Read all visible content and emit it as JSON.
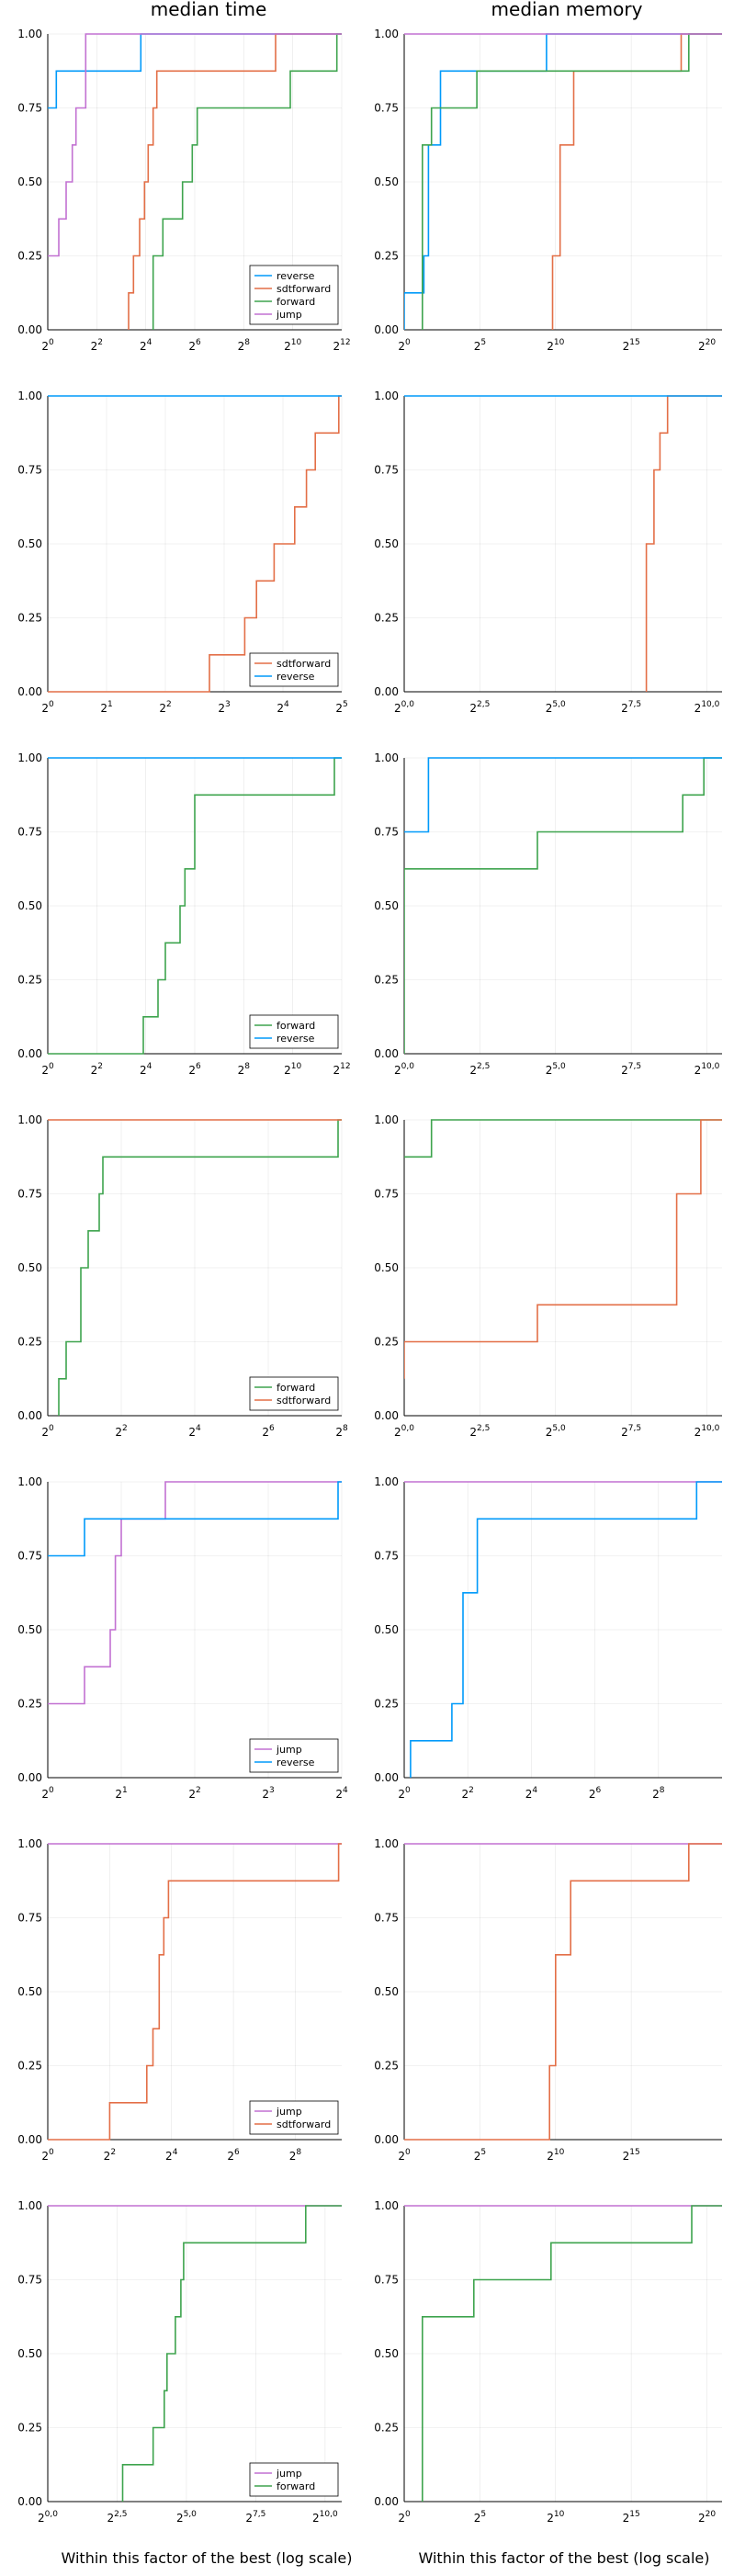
{
  "column_titles": [
    "median time",
    "median memory"
  ],
  "xlabel": "Within this factor of the best (log scale)",
  "colors": {
    "reverse": "#009AFA",
    "sdtforward": "#E36F47",
    "forward": "#3EA44E",
    "jump": "#C271D2"
  },
  "yticks": [
    "0.00",
    "0.25",
    "0.50",
    "0.75",
    "1.00"
  ],
  "chart_data": [
    {
      "type": "line",
      "step": true,
      "panel": "median time",
      "row": 1,
      "x_scale": "log2",
      "xlim": [
        0,
        12
      ],
      "ylim": [
        0,
        1
      ],
      "grid": true,
      "legend": "bottom-right",
      "xticks": [
        "0",
        "2",
        "4",
        "6",
        "8",
        "10",
        "12"
      ],
      "series": [
        {
          "name": "reverse",
          "color_key": "reverse",
          "x": [
            0,
            0.35,
            0.35,
            3.8,
            3.8,
            12.5
          ],
          "y": [
            0.75,
            0.75,
            0.875,
            0.875,
            1,
            1
          ]
        },
        {
          "name": "sdtforward",
          "color_key": "sdtforward",
          "x": [
            3.3,
            3.3,
            3.5,
            3.5,
            3.75,
            3.75,
            3.95,
            3.95,
            4.1,
            4.1,
            4.3,
            4.3,
            4.45,
            4.45,
            9.3,
            9.3,
            12.5
          ],
          "y": [
            0,
            0.125,
            0.125,
            0.25,
            0.25,
            0.375,
            0.375,
            0.5,
            0.5,
            0.625,
            0.625,
            0.75,
            0.75,
            0.875,
            0.875,
            1,
            1
          ]
        },
        {
          "name": "forward",
          "color_key": "forward",
          "x": [
            4.3,
            4.3,
            4.7,
            4.7,
            5.5,
            5.5,
            5.9,
            5.9,
            6.1,
            6.1,
            9.9,
            9.9,
            11.8,
            11.8,
            12.5
          ],
          "y": [
            0,
            0.25,
            0.25,
            0.375,
            0.375,
            0.5,
            0.5,
            0.625,
            0.625,
            0.75,
            0.75,
            0.875,
            0.875,
            1,
            1
          ]
        },
        {
          "name": "jump",
          "color_key": "jump",
          "x": [
            0,
            0.45,
            0.45,
            0.75,
            0.75,
            1.0,
            1.0,
            1.15,
            1.15,
            1.55,
            1.55,
            12.5
          ],
          "y": [
            0.25,
            0.25,
            0.375,
            0.375,
            0.5,
            0.5,
            0.625,
            0.625,
            0.75,
            0.75,
            1,
            1
          ]
        }
      ]
    },
    {
      "type": "line",
      "step": true,
      "panel": "median memory",
      "row": 1,
      "x_scale": "log2",
      "xlim": [
        0,
        21
      ],
      "ylim": [
        0,
        1
      ],
      "grid": true,
      "xticks": [
        "0",
        "5",
        "10",
        "15",
        "20"
      ],
      "series": [
        {
          "name": "reverse",
          "color_key": "reverse",
          "x": [
            0,
            0,
            1.3,
            1.3,
            1.6,
            1.6,
            2.4,
            2.4,
            9.4,
            9.4,
            21.5
          ],
          "y": [
            0,
            0.125,
            0.125,
            0.25,
            0.25,
            0.625,
            0.625,
            0.875,
            0.875,
            1,
            1
          ]
        },
        {
          "name": "sdtforward",
          "color_key": "sdtforward",
          "x": [
            9.8,
            9.8,
            10.3,
            10.3,
            11.2,
            11.2,
            18.3,
            18.3,
            21.5
          ],
          "y": [
            0,
            0.25,
            0.25,
            0.625,
            0.625,
            0.875,
            0.875,
            1,
            1
          ]
        },
        {
          "name": "forward",
          "color_key": "forward",
          "x": [
            1.2,
            1.2,
            1.8,
            1.8,
            4.8,
            4.8,
            9.7,
            9.7,
            18.8,
            18.8,
            21.5
          ],
          "y": [
            0,
            0.625,
            0.625,
            0.75,
            0.75,
            0.875,
            0.875,
            0.875,
            0.875,
            1,
            1
          ]
        },
        {
          "name": "jump",
          "color_key": "jump",
          "x": [
            0,
            21.5
          ],
          "y": [
            1,
            1
          ]
        }
      ]
    },
    {
      "type": "line",
      "step": true,
      "panel": "median time",
      "row": 2,
      "x_scale": "log2",
      "xlim": [
        0,
        5
      ],
      "ylim": [
        0,
        1
      ],
      "grid": true,
      "legend": "bottom-right",
      "xticks": [
        "0",
        "1",
        "2",
        "3",
        "4",
        "5"
      ],
      "series": [
        {
          "name": "sdtforward",
          "color_key": "sdtforward",
          "x": [
            0,
            2.75,
            2.75,
            3.35,
            3.35,
            3.55,
            3.55,
            3.85,
            3.85,
            4.2,
            4.2,
            4.4,
            4.4,
            4.55,
            4.55,
            4.95,
            4.95,
            5.2
          ],
          "y": [
            0,
            0,
            0.125,
            0.125,
            0.25,
            0.25,
            0.375,
            0.375,
            0.5,
            0.5,
            0.625,
            0.625,
            0.75,
            0.75,
            0.875,
            0.875,
            1,
            1
          ]
        },
        {
          "name": "reverse",
          "color_key": "reverse",
          "x": [
            0,
            5.2
          ],
          "y": [
            1,
            1
          ]
        }
      ]
    },
    {
      "type": "line",
      "step": true,
      "panel": "median memory",
      "row": 2,
      "x_scale": "log2",
      "xlim": [
        0,
        10.5
      ],
      "ylim": [
        0,
        1
      ],
      "grid": true,
      "xticks": [
        "0,0",
        "2,5",
        "5,0",
        "7,5",
        "10,0"
      ],
      "series": [
        {
          "name": "sdtforward",
          "color_key": "sdtforward",
          "x": [
            8.0,
            8.0,
            8.25,
            8.25,
            8.45,
            8.45,
            8.7,
            8.7,
            8.95,
            8.95,
            10.9
          ],
          "y": [
            0,
            0.5,
            0.5,
            0.75,
            0.75,
            0.875,
            0.875,
            1,
            1,
            1,
            1
          ]
        },
        {
          "name": "reverse",
          "color_key": "reverse",
          "x": [
            0,
            10.9
          ],
          "y": [
            1,
            1
          ]
        }
      ]
    },
    {
      "type": "line",
      "step": true,
      "panel": "median time",
      "row": 3,
      "x_scale": "log2",
      "xlim": [
        0,
        12
      ],
      "ylim": [
        0,
        1
      ],
      "grid": true,
      "legend": "bottom-right",
      "xticks": [
        "0",
        "2",
        "4",
        "6",
        "8",
        "10",
        "12"
      ],
      "series": [
        {
          "name": "forward",
          "color_key": "forward",
          "x": [
            0,
            3.9,
            3.9,
            4.5,
            4.5,
            4.8,
            4.8,
            5.4,
            5.4,
            5.6,
            5.6,
            6.0,
            6.0,
            11.7,
            11.7,
            12.5
          ],
          "y": [
            0,
            0,
            0.125,
            0.125,
            0.25,
            0.25,
            0.375,
            0.375,
            0.5,
            0.5,
            0.625,
            0.625,
            0.875,
            0.875,
            1,
            1
          ]
        },
        {
          "name": "reverse",
          "color_key": "reverse",
          "x": [
            0,
            12.5
          ],
          "y": [
            1,
            1
          ]
        }
      ]
    },
    {
      "type": "line",
      "step": true,
      "panel": "median memory",
      "row": 3,
      "x_scale": "log2",
      "xlim": [
        0,
        10.5
      ],
      "ylim": [
        0,
        1
      ],
      "grid": true,
      "xticks": [
        "0,0",
        "2,5",
        "5,0",
        "7,5",
        "10,0"
      ],
      "series": [
        {
          "name": "forward",
          "color_key": "forward",
          "x": [
            0,
            0,
            4.4,
            4.4,
            9.2,
            9.2,
            9.9,
            9.9,
            10.9
          ],
          "y": [
            0,
            0.625,
            0.625,
            0.75,
            0.75,
            0.875,
            0.875,
            1,
            1
          ]
        },
        {
          "name": "reverse",
          "color_key": "reverse",
          "x": [
            0,
            0.8,
            0.8,
            10.9
          ],
          "y": [
            0.75,
            0.75,
            1,
            1
          ]
        }
      ]
    },
    {
      "type": "line",
      "step": true,
      "panel": "median time",
      "row": 4,
      "x_scale": "log2",
      "xlim": [
        0,
        8
      ],
      "ylim": [
        0,
        1
      ],
      "grid": true,
      "legend": "bottom-right",
      "xticks": [
        "0",
        "2",
        "4",
        "6",
        "8"
      ],
      "series": [
        {
          "name": "forward",
          "color_key": "forward",
          "x": [
            0.3,
            0.3,
            0.5,
            0.5,
            0.9,
            0.9,
            1.1,
            1.1,
            1.4,
            1.4,
            1.5,
            1.5,
            1.65,
            1.65,
            7.9,
            7.9,
            8.2
          ],
          "y": [
            0,
            0.125,
            0.125,
            0.25,
            0.25,
            0.5,
            0.5,
            0.625,
            0.625,
            0.75,
            0.75,
            0.875,
            0.875,
            0.875,
            0.875,
            1,
            1
          ]
        },
        {
          "name": "sdtforward",
          "color_key": "sdtforward",
          "x": [
            0,
            8.2
          ],
          "y": [
            1,
            1
          ]
        }
      ]
    },
    {
      "type": "line",
      "step": true,
      "panel": "median memory",
      "row": 4,
      "x_scale": "log2",
      "xlim": [
        0,
        10.5
      ],
      "ylim": [
        0,
        1
      ],
      "grid": true,
      "xticks": [
        "0,0",
        "2,5",
        "5,0",
        "7,5",
        "10,0"
      ],
      "series": [
        {
          "name": "forward",
          "color_key": "forward",
          "x": [
            0,
            0.9,
            0.9,
            10.9
          ],
          "y": [
            0.875,
            0.875,
            1,
            1
          ]
        },
        {
          "name": "sdtforward",
          "color_key": "sdtforward",
          "x": [
            0,
            0,
            4.4,
            4.4,
            9.0,
            9.0,
            9.8,
            9.8,
            10.9
          ],
          "y": [
            0.125,
            0.25,
            0.25,
            0.375,
            0.375,
            0.75,
            0.75,
            1,
            1
          ]
        }
      ]
    },
    {
      "type": "line",
      "step": true,
      "panel": "median time",
      "row": 5,
      "x_scale": "log2",
      "xlim": [
        0,
        4
      ],
      "ylim": [
        0,
        1
      ],
      "grid": true,
      "legend": "bottom-right",
      "xticks": [
        "0",
        "1",
        "2",
        "3",
        "4"
      ],
      "series": [
        {
          "name": "jump",
          "color_key": "jump",
          "x": [
            0,
            0.5,
            0.5,
            0.85,
            0.85,
            0.92,
            0.92,
            1.0,
            1.0,
            1.6,
            1.6,
            4.1
          ],
          "y": [
            0.25,
            0.25,
            0.375,
            0.375,
            0.5,
            0.5,
            0.75,
            0.75,
            0.875,
            0.875,
            1,
            1
          ]
        },
        {
          "name": "reverse",
          "color_key": "reverse",
          "x": [
            0,
            0.5,
            0.5,
            3.95,
            3.95,
            4.1
          ],
          "y": [
            0.75,
            0.75,
            0.875,
            0.875,
            1,
            1
          ]
        }
      ]
    },
    {
      "type": "line",
      "step": true,
      "panel": "median memory",
      "row": 5,
      "x_scale": "log2",
      "xlim": [
        0,
        10
      ],
      "ylim": [
        0,
        1
      ],
      "grid": true,
      "xticks": [
        "0",
        "2",
        "4",
        "6",
        "8"
      ],
      "series": [
        {
          "name": "jump",
          "color_key": "jump",
          "x": [
            0,
            10.3
          ],
          "y": [
            1,
            1
          ]
        },
        {
          "name": "reverse",
          "color_key": "reverse",
          "x": [
            0.2,
            0.2,
            1.5,
            1.5,
            1.85,
            1.85,
            2.3,
            2.3,
            9.2,
            9.2,
            10.3
          ],
          "y": [
            0,
            0.125,
            0.125,
            0.25,
            0.25,
            0.625,
            0.625,
            0.875,
            0.875,
            1,
            1
          ]
        }
      ]
    },
    {
      "type": "line",
      "step": true,
      "panel": "median time",
      "row": 6,
      "x_scale": "log2",
      "xlim": [
        0,
        9.5
      ],
      "ylim": [
        0,
        1
      ],
      "grid": true,
      "legend": "bottom-right",
      "xticks": [
        "0",
        "2",
        "4",
        "6",
        "8"
      ],
      "series": [
        {
          "name": "jump",
          "color_key": "jump",
          "x": [
            0,
            9.8
          ],
          "y": [
            1,
            1
          ]
        },
        {
          "name": "sdtforward",
          "color_key": "sdtforward",
          "x": [
            0,
            2.0,
            2.0,
            3.2,
            3.2,
            3.4,
            3.4,
            3.6,
            3.6,
            3.75,
            3.75,
            3.9,
            3.9,
            9.4,
            9.4,
            9.8
          ],
          "y": [
            0,
            0,
            0.125,
            0.125,
            0.25,
            0.25,
            0.375,
            0.375,
            0.625,
            0.625,
            0.75,
            0.75,
            0.875,
            0.875,
            1,
            1
          ]
        }
      ]
    },
    {
      "type": "line",
      "step": true,
      "panel": "median memory",
      "row": 6,
      "x_scale": "log2",
      "xlim": [
        0,
        21
      ],
      "ylim": [
        0,
        1
      ],
      "grid": true,
      "xticks": [
        "0",
        "5",
        "10",
        "15"
      ],
      "series": [
        {
          "name": "jump",
          "color_key": "jump",
          "x": [
            0,
            21.5
          ],
          "y": [
            1,
            1
          ]
        },
        {
          "name": "sdtforward",
          "color_key": "sdtforward",
          "x": [
            0,
            9.6,
            9.6,
            10.0,
            10.0,
            11.0,
            11.0,
            18.8,
            18.8,
            21.5
          ],
          "y": [
            0,
            0,
            0.25,
            0.25,
            0.625,
            0.625,
            0.875,
            0.875,
            1,
            1
          ]
        }
      ]
    },
    {
      "type": "line",
      "step": true,
      "panel": "median time",
      "row": 7,
      "x_scale": "log2",
      "xlim": [
        0,
        10.6
      ],
      "ylim": [
        0,
        1
      ],
      "grid": true,
      "legend": "bottom-right",
      "xticks": [
        "0,0",
        "2,5",
        "5,0",
        "7,5",
        "10,0"
      ],
      "series": [
        {
          "name": "jump",
          "color_key": "jump",
          "x": [
            0,
            10.9
          ],
          "y": [
            1,
            1
          ]
        },
        {
          "name": "forward",
          "color_key": "forward",
          "x": [
            2.7,
            2.7,
            3.8,
            3.8,
            4.2,
            4.2,
            4.3,
            4.3,
            4.6,
            4.6,
            4.8,
            4.8,
            4.9,
            4.9,
            9.3,
            9.3,
            10.3,
            10.3,
            10.9
          ],
          "y": [
            0,
            0.125,
            0.125,
            0.25,
            0.25,
            0.375,
            0.375,
            0.5,
            0.5,
            0.625,
            0.625,
            0.75,
            0.75,
            0.875,
            0.875,
            1,
            1,
            1,
            1
          ]
        }
      ]
    },
    {
      "type": "line",
      "step": true,
      "panel": "median memory",
      "row": 7,
      "x_scale": "log2",
      "xlim": [
        0,
        21
      ],
      "ylim": [
        0,
        1
      ],
      "grid": true,
      "xticks": [
        "0",
        "5",
        "10",
        "15",
        "20"
      ],
      "series": [
        {
          "name": "jump",
          "color_key": "jump",
          "x": [
            0,
            21.5
          ],
          "y": [
            1,
            1
          ]
        },
        {
          "name": "forward",
          "color_key": "forward",
          "x": [
            1.2,
            1.2,
            4.6,
            4.6,
            9.7,
            9.7,
            19.0,
            19.0,
            21.5
          ],
          "y": [
            0,
            0.625,
            0.625,
            0.75,
            0.75,
            0.875,
            0.875,
            1,
            1
          ]
        }
      ]
    }
  ]
}
